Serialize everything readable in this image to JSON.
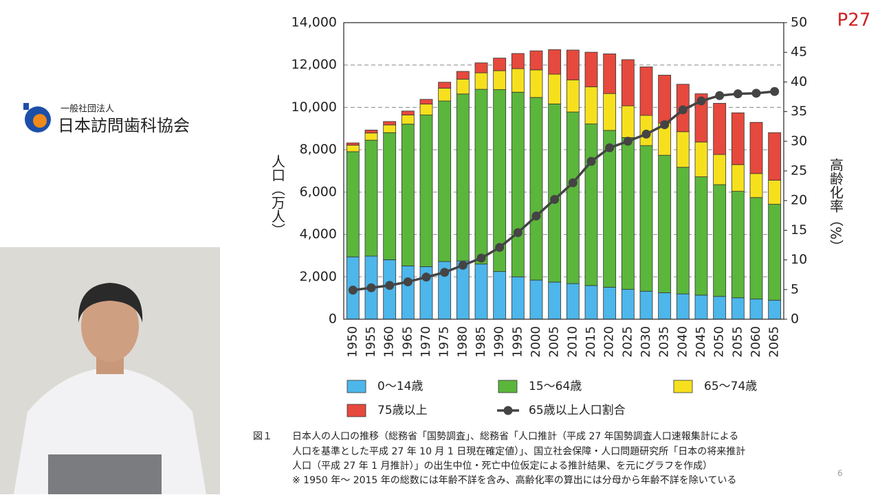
{
  "logo": {
    "small": "一般社団法人",
    "name": "日本訪問歯科協会"
  },
  "page_label": "P27",
  "page_number": "6",
  "caption": {
    "label": "図１",
    "lines": [
      "日本人の人口の推移（総務省「国勢調査」、総務省「人口推計（平成 27 年国勢調査人口速報集計による",
      "人口を基準とした平成 27 年 10 月 1 日現在確定値）」、国立社会保障・人口問題研究所「日本の将来推計",
      "人口（平成 27 年 1 月推計）」の出生中位・死亡中位仮定による推計結果、を元にグラフを作成）",
      "※ 1950 年～ 2015 年の総数には年齢不詳を含み、高齢化率の算出には分母から年齢不詳を除いている"
    ]
  },
  "chart_data": {
    "type": "bar",
    "stacked": true,
    "y_label": "人口（万人）",
    "y2_label": "高齢化率（%）",
    "categories": [
      "1950",
      "1955",
      "1960",
      "1965",
      "1970",
      "1975",
      "1980",
      "1985",
      "1990",
      "1995",
      "2000",
      "2005",
      "2010",
      "2015",
      "2020",
      "2025",
      "2030",
      "2035",
      "2040",
      "2045",
      "2050",
      "2055",
      "2060",
      "2065"
    ],
    "series": [
      {
        "name": "0～14歳",
        "color": "#4db6ea",
        "values": [
          2943,
          2980,
          2807,
          2517,
          2482,
          2722,
          2751,
          2603,
          2249,
          2001,
          1847,
          1752,
          1680,
          1589,
          1507,
          1407,
          1321,
          1246,
          1194,
          1138,
          1077,
          1012,
          951,
          898
        ]
      },
      {
        "name": "15～64歳",
        "color": "#5bb63c",
        "values": [
          4966,
          5473,
          6000,
          6693,
          7157,
          7581,
          7883,
          8251,
          8590,
          8717,
          8622,
          8409,
          8103,
          7629,
          7406,
          7170,
          6875,
          6494,
          5978,
          5584,
          5275,
          5028,
          4793,
          4529
        ]
      },
      {
        "name": "65～74歳",
        "color": "#f6e01e",
        "values": [
          309,
          338,
          364,
          431,
          516,
          602,
          699,
          776,
          892,
          1109,
          1301,
          1407,
          1517,
          1755,
          1742,
          1497,
          1428,
          1522,
          1681,
          1643,
          1424,
          1258,
          1133,
          1133
        ]
      },
      {
        "name": "75歳以上",
        "color": "#e6493d",
        "values": [
          106,
          139,
          163,
          187,
          224,
          284,
          366,
          471,
          597,
          717,
          900,
          1160,
          1407,
          1632,
          1872,
          2180,
          2288,
          2260,
          2239,
          2277,
          2417,
          2446,
          2417,
          2248
        ]
      },
      {
        "name": "65歳以上人口割合",
        "color": "#444444",
        "type": "line",
        "axis": "y2",
        "values": [
          4.9,
          5.3,
          5.7,
          6.3,
          7.1,
          7.9,
          9.1,
          10.3,
          12.1,
          14.6,
          17.4,
          20.2,
          23.0,
          26.6,
          28.9,
          30.0,
          31.2,
          32.8,
          35.3,
          36.8,
          37.7,
          38.0,
          38.1,
          38.4
        ]
      }
    ],
    "ylim": [
      0,
      14000
    ],
    "yticks": [
      0,
      {
        "value": 2000,
        "label": "2,000"
      },
      {
        "value": 4000,
        "label": "4,000"
      },
      {
        "value": 6000,
        "label": "6,000"
      },
      {
        "value": 8000,
        "label": "8,000"
      },
      {
        "value": 10000,
        "label": "10,000"
      },
      {
        "value": 12000,
        "label": "12,000"
      },
      {
        "value": 14000,
        "label": "14,000"
      }
    ],
    "y2lim": [
      0,
      50
    ],
    "y2ticks": [
      0,
      5,
      10,
      15,
      20,
      25,
      30,
      35,
      40,
      45,
      50
    ],
    "grid": true
  }
}
